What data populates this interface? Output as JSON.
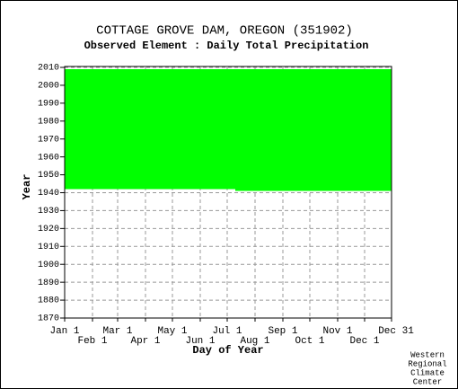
{
  "chart_data": {
    "type": "range",
    "title": "COTTAGE GROVE DAM, OREGON   (351902)",
    "subtitle": "Observed Element : Daily Total Precipitation",
    "xlabel": "Day of Year",
    "ylabel": "Year",
    "credit": [
      "Western",
      "Regional",
      "Climate",
      "Center"
    ],
    "color": "#00ff00",
    "segments": [
      {
        "x": [
          1,
          191
        ],
        "low": 1942,
        "high": 2009
      },
      {
        "x": [
          191,
          365
        ],
        "low": 1941,
        "high": 2009
      }
    ],
    "xlim": [
      1,
      365
    ],
    "xticks": [
      {
        "value": 1,
        "label": "Jan 1"
      },
      {
        "value": 32,
        "label": "Feb 1"
      },
      {
        "value": 60,
        "label": "Mar 1"
      },
      {
        "value": 91,
        "label": "Apr 1"
      },
      {
        "value": 121,
        "label": "May 1"
      },
      {
        "value": 152,
        "label": "Jun 1"
      },
      {
        "value": 182,
        "label": "Jul 1"
      },
      {
        "value": 213,
        "label": "Aug 1"
      },
      {
        "value": 244,
        "label": "Sep 1"
      },
      {
        "value": 274,
        "label": "Oct 1"
      },
      {
        "value": 305,
        "label": "Nov 1"
      },
      {
        "value": 335,
        "label": "Dec 1"
      },
      {
        "value": 365,
        "label": "Dec 31"
      }
    ],
    "ylim": [
      1870,
      2010
    ],
    "yticks": [
      1870,
      1880,
      1890,
      1900,
      1910,
      1920,
      1930,
      1940,
      1950,
      1960,
      1970,
      1980,
      1990,
      2000,
      2010
    ],
    "grid": true
  }
}
